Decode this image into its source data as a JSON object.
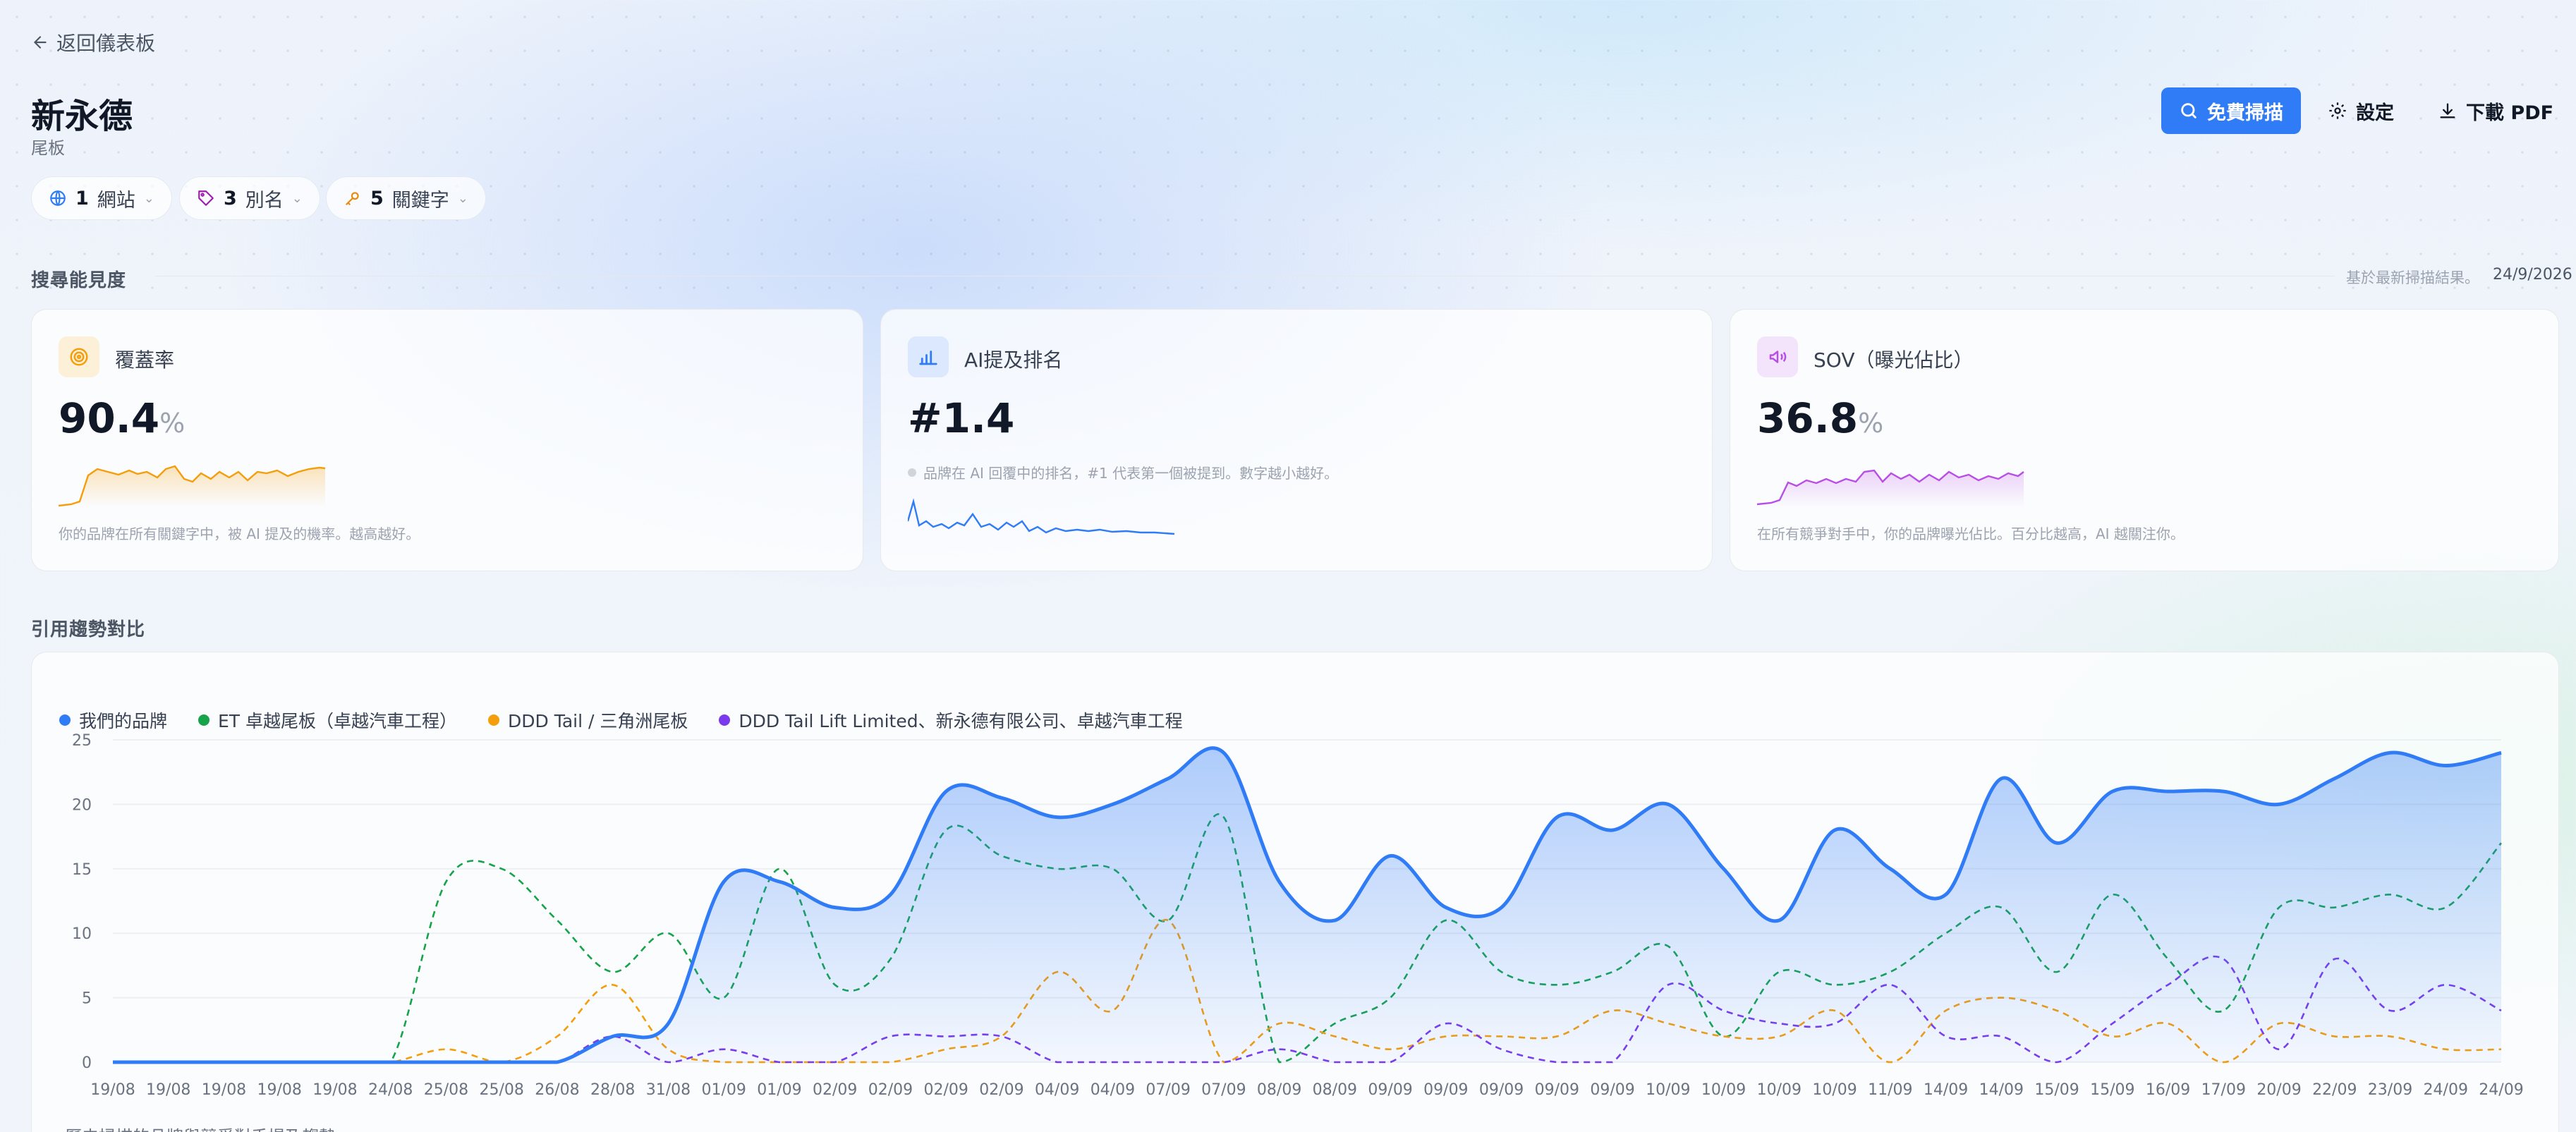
{
  "nav": {
    "back_label": "返回儀表板"
  },
  "brand": {
    "title": "新永德",
    "subtitle": "尾板"
  },
  "filters": [
    {
      "count": "1",
      "label": "網站",
      "icon": "globe-icon"
    },
    {
      "count": "3",
      "label": "別名",
      "icon": "tag-icon"
    },
    {
      "count": "5",
      "label": "關鍵字",
      "icon": "key-icon"
    }
  ],
  "actions": {
    "scan_label": "免費掃描",
    "settings_label": "設定",
    "download_label": "下載 PDF"
  },
  "visibility": {
    "title": "搜尋能見度",
    "note": "基於最新掃描結果。",
    "date": "24/9/2026",
    "cards": [
      {
        "label": "覆蓋率",
        "value": "90.4",
        "unit": "%",
        "desc": "你的品牌在所有關鍵字中，被 AI 提及的機率。越高越好。",
        "icon": "target-icon",
        "color": "#f59e0b"
      },
      {
        "label": "AI提及排名",
        "value": "#1.4",
        "unit": "",
        "desc": "品牌在 AI 回覆中的排名，#1 代表第一個被提到。數字越小越好。",
        "icon": "bar-chart-icon",
        "color": "#2f7cf6"
      },
      {
        "label": "SOV（曝光佔比）",
        "value": "36.8",
        "unit": "%",
        "desc": "在所有競爭對手中，你的品牌曝光佔比。百分比越高，AI 越關注你。",
        "icon": "megaphone-icon",
        "color": "#b94ee6"
      }
    ]
  },
  "trend": {
    "title": "引用趨勢對比",
    "footnote": "歷史掃描的品牌與競爭對手提及趨勢"
  },
  "chart_data": {
    "type": "line",
    "ylim": [
      0,
      25
    ],
    "yticks": [
      0,
      5,
      10,
      15,
      20,
      25
    ],
    "grid": true,
    "legend_position": "top-left",
    "x": [
      "19/08",
      "19/08",
      "19/08",
      "19/08",
      "19/08",
      "24/08",
      "25/08",
      "25/08",
      "26/08",
      "28/08",
      "31/08",
      "01/09",
      "01/09",
      "02/09",
      "02/09",
      "02/09",
      "02/09",
      "04/09",
      "04/09",
      "07/09",
      "07/09",
      "08/09",
      "08/09",
      "09/09",
      "09/09",
      "09/09",
      "09/09",
      "09/09",
      "10/09",
      "10/09",
      "10/09",
      "10/09",
      "11/09",
      "14/09",
      "14/09",
      "15/09",
      "15/09",
      "16/09",
      "17/09",
      "20/09",
      "22/09",
      "23/09",
      "24/09",
      "24/09"
    ],
    "series": [
      {
        "name": "我們的品牌",
        "color": "#2f7cf6",
        "style": "area",
        "values": [
          0,
          0,
          0,
          0,
          0,
          0,
          0,
          0,
          0,
          2,
          3,
          14,
          14,
          12,
          13,
          21,
          20.5,
          19,
          20,
          22,
          24,
          14,
          11,
          16,
          12,
          12,
          19,
          18,
          20,
          15,
          11,
          18,
          15,
          13,
          22,
          17,
          21,
          21,
          21,
          20,
          22,
          24,
          23,
          24
        ]
      },
      {
        "name": "ET 卓越尾板（卓越汽車工程）",
        "color": "#16a34a",
        "style": "dashed",
        "values": [
          0,
          0,
          0,
          0,
          0,
          0,
          14,
          15,
          11,
          7,
          10,
          5,
          15,
          6,
          8,
          18,
          16,
          15,
          15,
          11,
          19,
          0,
          3,
          5,
          11,
          7,
          6,
          7,
          9,
          2,
          7,
          6,
          7,
          10,
          12,
          7,
          13,
          8,
          4,
          12,
          12,
          13,
          12,
          17
        ]
      },
      {
        "name": "DDD Tail / 三角洲尾板",
        "color": "#f59e0b",
        "style": "dashed",
        "values": [
          0,
          0,
          0,
          0,
          0,
          0,
          1,
          0,
          2,
          6,
          1,
          0,
          0,
          0,
          0,
          1,
          2,
          7,
          4,
          11,
          0,
          3,
          2,
          1,
          2,
          2,
          2,
          4,
          3,
          2,
          2,
          4,
          0,
          4,
          5,
          4,
          2,
          3,
          0,
          3,
          2,
          2,
          1,
          1
        ]
      },
      {
        "name": "DDD Tail Lift Limited、新永德有限公司、卓越汽車工程",
        "color": "#7c3aed",
        "style": "dashed",
        "values": [
          0,
          0,
          0,
          0,
          0,
          0,
          0,
          0,
          0,
          2,
          0,
          1,
          0,
          0,
          2,
          2,
          2,
          0,
          0,
          0,
          0,
          1,
          0,
          0,
          3,
          1,
          0,
          0,
          6,
          4,
          3,
          3,
          6,
          2,
          2,
          0,
          3,
          6,
          8,
          1,
          8,
          4,
          6,
          4
        ]
      }
    ]
  }
}
